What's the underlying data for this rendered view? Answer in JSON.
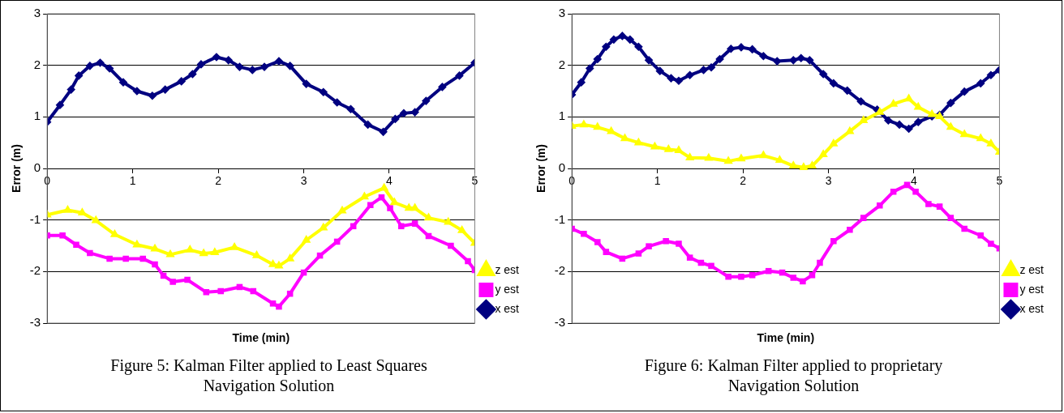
{
  "chart_data": [
    {
      "type": "line",
      "xlabel": "Time (min)",
      "ylabel": "Error (m)",
      "annotations": [
        "Figure 5: Kalman Filter applied to Least Squares Navigation Solution"
      ],
      "xlim": [
        0,
        5
      ],
      "xticks": [
        0,
        1,
        2,
        3,
        4,
        5
      ],
      "ylim": [
        -3,
        3
      ],
      "yticks": [
        -3,
        -2,
        -1,
        0,
        1,
        2,
        3
      ],
      "grid": "y",
      "legend": "bottom right",
      "line_style": "solid",
      "series": [
        {
          "name": "x est",
          "color": "#000080",
          "marker": "diamond",
          "x": [
            0,
            0.15,
            0.28,
            0.37,
            0.5,
            0.62,
            0.73,
            0.89,
            1.05,
            1.23,
            1.38,
            1.57,
            1.7,
            1.8,
            1.98,
            2.12,
            2.25,
            2.4,
            2.54,
            2.71,
            2.84,
            3.03,
            3.23,
            3.39,
            3.55,
            3.75,
            3.93,
            4.07,
            4.17,
            4.3,
            4.43,
            4.62,
            4.82,
            5
          ],
          "values": [
            0.9,
            1.23,
            1.53,
            1.8,
            1.99,
            2.05,
            1.94,
            1.67,
            1.5,
            1.41,
            1.53,
            1.69,
            1.83,
            2.02,
            2.16,
            2.1,
            1.97,
            1.91,
            1.97,
            2.08,
            1.99,
            1.64,
            1.48,
            1.28,
            1.15,
            0.85,
            0.71,
            0.96,
            1.07,
            1.09,
            1.31,
            1.58,
            1.8,
            2.05
          ]
        },
        {
          "name": "y est",
          "color": "#ff00ff",
          "marker": "square",
          "x": [
            0,
            0.18,
            0.34,
            0.5,
            0.73,
            0.92,
            1.12,
            1.26,
            1.36,
            1.47,
            1.64,
            1.86,
            2.03,
            2.25,
            2.41,
            2.64,
            2.71,
            2.84,
            3,
            3.19,
            3.39,
            3.58,
            3.78,
            3.91,
            4.01,
            4.14,
            4.3,
            4.46,
            4.72,
            4.92,
            5
          ],
          "values": [
            -1.3,
            -1.3,
            -1.48,
            -1.64,
            -1.75,
            -1.75,
            -1.75,
            -1.86,
            -2.08,
            -2.2,
            -2.16,
            -2.4,
            -2.38,
            -2.3,
            -2.38,
            -2.62,
            -2.68,
            -2.43,
            -2.02,
            -1.69,
            -1.42,
            -1.12,
            -0.71,
            -0.56,
            -0.77,
            -1.12,
            -1.07,
            -1.31,
            -1.5,
            -1.8,
            -1.97
          ]
        },
        {
          "name": "z est",
          "color": "#ffff00",
          "marker": "triangle",
          "x": [
            0,
            0.24,
            0.41,
            0.57,
            0.79,
            1.05,
            1.26,
            1.44,
            1.67,
            1.83,
            1.96,
            2.19,
            2.45,
            2.64,
            2.71,
            2.84,
            3.03,
            3.23,
            3.45,
            3.71,
            3.94,
            4.06,
            4.23,
            4.3,
            4.46,
            4.69,
            4.85,
            5
          ],
          "values": [
            -0.9,
            -0.81,
            -0.86,
            -1.01,
            -1.28,
            -1.48,
            -1.56,
            -1.67,
            -1.58,
            -1.65,
            -1.63,
            -1.53,
            -1.69,
            -1.86,
            -1.89,
            -1.75,
            -1.39,
            -1.15,
            -0.82,
            -0.55,
            -0.38,
            -0.66,
            -0.77,
            -0.77,
            -0.96,
            -1.04,
            -1.2,
            -1.45
          ]
        }
      ]
    },
    {
      "type": "line",
      "xlabel": "Time (min)",
      "ylabel": "Error (m)",
      "annotations": [
        "Figure 6: Kalman Filter applied to proprietary Navigation Solution"
      ],
      "xlim": [
        0,
        5
      ],
      "xticks": [
        0,
        1,
        2,
        3,
        4,
        5
      ],
      "ylim": [
        -3,
        3
      ],
      "yticks": [
        -3,
        -2,
        -1,
        0,
        1,
        2,
        3
      ],
      "grid": "y",
      "legend": "bottom right",
      "line_style": "solid",
      "series": [
        {
          "name": "x est",
          "color": "#000080",
          "marker": "diamond",
          "x": [
            0,
            0.11,
            0.21,
            0.3,
            0.4,
            0.49,
            0.59,
            0.68,
            0.78,
            0.9,
            1.03,
            1.16,
            1.25,
            1.38,
            1.54,
            1.63,
            1.73,
            1.86,
            1.98,
            2.11,
            2.24,
            2.4,
            2.59,
            2.68,
            2.78,
            2.94,
            3.06,
            3.22,
            3.38,
            3.57,
            3.7,
            3.83,
            3.94,
            4.05,
            4.21,
            4.3,
            4.43,
            4.59,
            4.78,
            4.9,
            5
          ],
          "values": [
            1.43,
            1.67,
            1.94,
            2.12,
            2.36,
            2.5,
            2.57,
            2.5,
            2.36,
            2.1,
            1.89,
            1.75,
            1.7,
            1.81,
            1.91,
            1.96,
            2.12,
            2.32,
            2.35,
            2.31,
            2.18,
            2.08,
            2.1,
            2.14,
            2.1,
            1.83,
            1.65,
            1.51,
            1.3,
            1.14,
            0.93,
            0.85,
            0.77,
            0.9,
            1.01,
            1.04,
            1.27,
            1.49,
            1.65,
            1.81,
            1.91
          ]
        },
        {
          "name": "y est",
          "color": "#ff00ff",
          "marker": "square",
          "x": [
            0,
            0.14,
            0.3,
            0.4,
            0.59,
            0.78,
            0.9,
            1.1,
            1.25,
            1.38,
            1.51,
            1.63,
            1.83,
            1.98,
            2.11,
            2.3,
            2.46,
            2.59,
            2.7,
            2.81,
            2.9,
            3.06,
            3.25,
            3.41,
            3.6,
            3.76,
            3.92,
            4.02,
            4.17,
            4.3,
            4.43,
            4.59,
            4.78,
            4.9,
            5
          ],
          "values": [
            -1.17,
            -1.27,
            -1.43,
            -1.62,
            -1.75,
            -1.65,
            -1.51,
            -1.41,
            -1.46,
            -1.73,
            -1.83,
            -1.89,
            -2.1,
            -2.1,
            -2.07,
            -1.99,
            -2.02,
            -2.12,
            -2.19,
            -2.07,
            -1.83,
            -1.41,
            -1.19,
            -0.96,
            -0.72,
            -0.45,
            -0.32,
            -0.45,
            -0.69,
            -0.74,
            -0.96,
            -1.17,
            -1.3,
            -1.46,
            -1.55
          ]
        },
        {
          "name": "z est",
          "color": "#ffff00",
          "marker": "triangle",
          "x": [
            0,
            0.14,
            0.3,
            0.46,
            0.62,
            0.78,
            0.97,
            1.13,
            1.25,
            1.38,
            1.6,
            1.83,
            1.98,
            2.24,
            2.43,
            2.59,
            2.71,
            2.81,
            2.94,
            3.06,
            3.25,
            3.41,
            3.6,
            3.76,
            3.94,
            4.05,
            4.21,
            4.3,
            4.43,
            4.59,
            4.78,
            4.9,
            5
          ],
          "values": [
            0.82,
            0.85,
            0.8,
            0.72,
            0.58,
            0.5,
            0.42,
            0.37,
            0.35,
            0.21,
            0.2,
            0.14,
            0.19,
            0.25,
            0.16,
            0.05,
            0.02,
            0.05,
            0.27,
            0.48,
            0.72,
            0.93,
            1.09,
            1.25,
            1.35,
            1.19,
            1.05,
            1.01,
            0.8,
            0.66,
            0.58,
            0.48,
            0.32
          ]
        }
      ]
    }
  ]
}
